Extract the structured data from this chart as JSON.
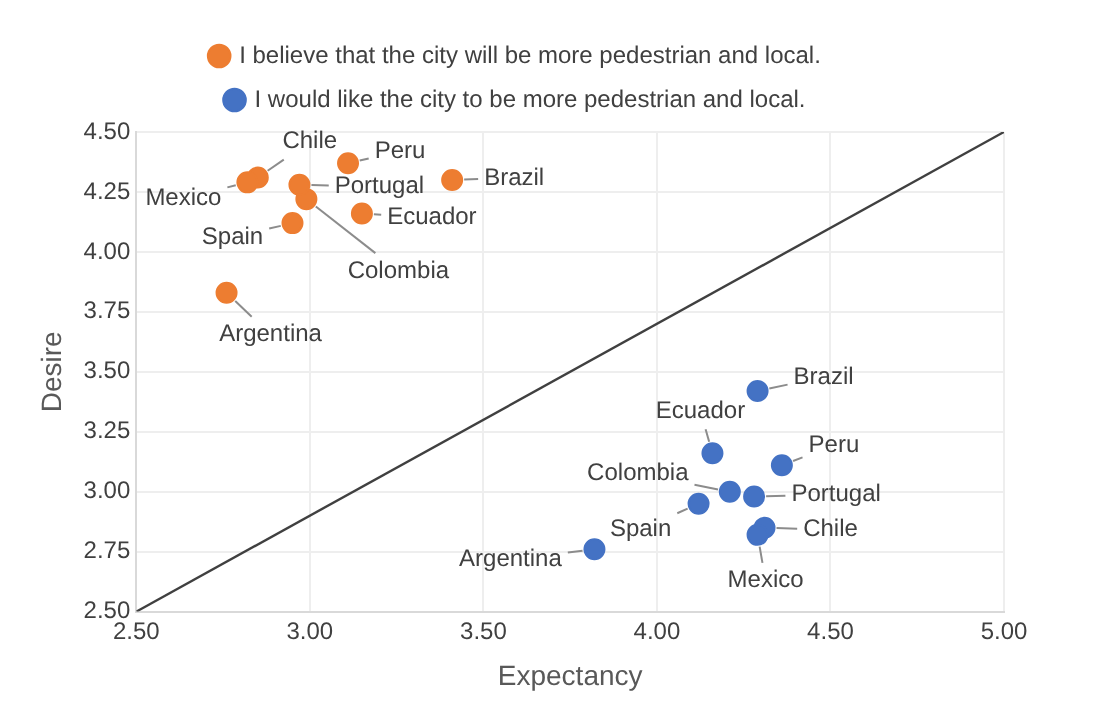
{
  "chart_data": {
    "type": "scatter",
    "xlabel": "Expectancy",
    "ylabel": "Desire",
    "xlim": [
      2.5,
      5.0
    ],
    "ylim": [
      2.5,
      4.5
    ],
    "xticks": [
      {
        "value": 2.5,
        "label": "2.50"
      },
      {
        "value": 3.0,
        "label": "3.00"
      },
      {
        "value": 3.5,
        "label": "3.50"
      },
      {
        "value": 4.0,
        "label": "4.00"
      },
      {
        "value": 4.5,
        "label": "4.50"
      },
      {
        "value": 5.0,
        "label": "5.00"
      }
    ],
    "yticks": [
      {
        "value": 2.5,
        "label": "2.50"
      },
      {
        "value": 2.75,
        "label": "2.75"
      },
      {
        "value": 3.0,
        "label": "3.00"
      },
      {
        "value": 3.25,
        "label": "3.25"
      },
      {
        "value": 3.5,
        "label": "3.50"
      },
      {
        "value": 3.75,
        "label": "3.75"
      },
      {
        "value": 4.0,
        "label": "4.00"
      },
      {
        "value": 4.25,
        "label": "4.25"
      },
      {
        "value": 4.5,
        "label": "4.50"
      }
    ],
    "grid": true,
    "legend": "top",
    "marker": "circle",
    "series": [
      {
        "name": "I believe that the city will be more pedestrian and local.",
        "color": "#ed7d31",
        "x": [
          2.76,
          3.41,
          2.85,
          2.99,
          3.15,
          2.82,
          3.11,
          2.97,
          2.95
        ],
        "values": [
          3.83,
          4.3,
          4.31,
          4.22,
          4.16,
          4.29,
          4.37,
          4.28,
          4.12
        ]
      },
      {
        "name": "I would like the city to be more pedestrian and local.",
        "color": "#4472c4",
        "x": [
          3.82,
          4.29,
          4.31,
          4.21,
          4.16,
          4.29,
          4.36,
          4.28,
          4.12
        ],
        "values": [
          2.76,
          3.42,
          2.85,
          3.0,
          3.16,
          2.82,
          3.11,
          2.98,
          2.95
        ]
      },
      {
        "type": "line",
        "color": "#404040",
        "x": [
          2.5,
          5.0
        ],
        "values": [
          2.5,
          4.5
        ],
        "marker": "none"
      }
    ],
    "annotations": [
      {
        "text": "Argentina",
        "x": 2.76,
        "y": 3.83
      },
      {
        "text": "Brazil",
        "x": 3.41,
        "y": 4.3
      },
      {
        "text": "Chile",
        "x": 2.85,
        "y": 4.31
      },
      {
        "text": "Colombia",
        "x": 2.99,
        "y": 4.22
      },
      {
        "text": "Ecuador",
        "x": 3.15,
        "y": 4.16
      },
      {
        "text": "Mexico",
        "x": 2.82,
        "y": 4.29
      },
      {
        "text": "Peru",
        "x": 3.11,
        "y": 4.37
      },
      {
        "text": "Portugal",
        "x": 2.97,
        "y": 4.28
      },
      {
        "text": "Spain",
        "x": 2.95,
        "y": 4.12
      },
      {
        "text": "Argentina",
        "x": 3.82,
        "y": 2.76
      },
      {
        "text": "Brazil",
        "x": 4.29,
        "y": 3.42
      },
      {
        "text": "Chile",
        "x": 4.31,
        "y": 2.85
      },
      {
        "text": "Colombia",
        "x": 4.21,
        "y": 3.0
      },
      {
        "text": "Ecuador",
        "x": 4.16,
        "y": 3.16
      },
      {
        "text": "Mexico",
        "x": 4.29,
        "y": 2.82
      },
      {
        "text": "Peru",
        "x": 4.36,
        "y": 3.11
      },
      {
        "text": "Portugal",
        "x": 4.28,
        "y": 2.98
      },
      {
        "text": "Spain",
        "x": 4.12,
        "y": 2.95
      }
    ]
  }
}
